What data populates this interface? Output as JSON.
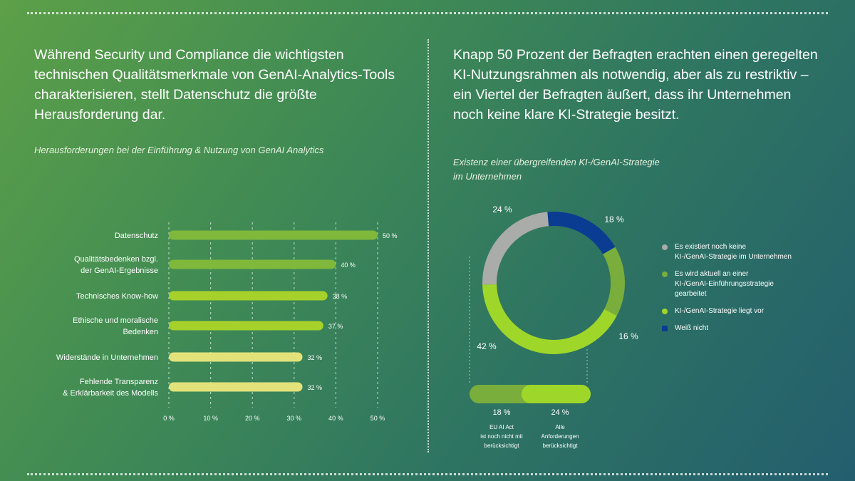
{
  "left": {
    "headline": "Während Security und Compliance die wichtigsten technischen Qualitätsmerkmale von GenAI-Analytics-Tools charakterisieren, stellt Datenschutz die größte Herausforderung dar.",
    "subtitle": "Herausforderungen bei der Einführung & Nutzung von GenAI Analytics"
  },
  "right": {
    "headline": "Knapp 50 Prozent der Befragten erachten einen geregelten KI-Nutzungsrahmen als notwendig, aber als zu restriktiv – ein Viertel der Befragten äußert, dass ihr Unternehmen noch keine klare KI-Strategie besitzt.",
    "subtitle_line1": "Existenz einer übergreifenden KI-/GenAI-Strategie",
    "subtitle_line2": "im Unternehmen"
  },
  "chart_data": [
    {
      "type": "bar",
      "orientation": "horizontal",
      "title": "Herausforderungen bei der Einführung & Nutzung von GenAI Analytics",
      "categories": [
        [
          "Datenschutz"
        ],
        [
          "Qualitätsbedenken bzgl.",
          "der GenAI-Ergebnisse"
        ],
        [
          "Technisches Know-how"
        ],
        [
          "Ethische und moralische",
          "Bedenken"
        ],
        [
          "Widerstände in Unternehmen"
        ],
        [
          "Fehlende Transparenz",
          "& Erklärbarkeit des Modells"
        ]
      ],
      "values": [
        50,
        40,
        38,
        37,
        32,
        32
      ],
      "value_labels": [
        "50 %",
        "40 %",
        "38 %",
        "37 %",
        "32 %",
        "32 %"
      ],
      "bar_colors": [
        "#7fb83a",
        "#7fb83a",
        "#a6d12a",
        "#a6d12a",
        "#e3e27a",
        "#e3e27a"
      ],
      "xlim": [
        0,
        50
      ],
      "xticks": [
        "0 %",
        "10 %",
        "20 %",
        "30 %",
        "40 %",
        "50 %"
      ],
      "grid": true
    },
    {
      "type": "pie",
      "variant": "donut",
      "title": "Existenz einer übergreifenden KI-/GenAI-Strategie im Unternehmen",
      "slices": [
        {
          "label": "Weiß nicht",
          "value": 18,
          "value_label": "18 %",
          "color": "#0a3d91"
        },
        {
          "label": "Es wird aktuell an einer KI-/GenAI-Einführungsstrategie gearbeitet",
          "value": 16,
          "value_label": "16 %",
          "color": "#79ad3c"
        },
        {
          "label": "KI-/GenAI-Strategie liegt vor",
          "value": 42,
          "value_label": "42 %",
          "color": "#9fd62a"
        },
        {
          "label": "Es existiert noch keine KI-/GenAI-Strategie im Unternehmen",
          "value": 24,
          "value_label": "24 %",
          "color": "#a9aca8"
        }
      ],
      "legend": [
        {
          "lines": [
            "Es existiert noch keine",
            "KI-/GenAI-Strategie im Unternehmen"
          ],
          "color": "#a9aca8"
        },
        {
          "lines": [
            "Es wird aktuell an einer",
            "KI-/GenAI-Einführungsstrategie",
            "gearbeitet"
          ],
          "color": "#79ad3c"
        },
        {
          "lines": [
            "KI-/GenAI-Strategie liegt vor"
          ],
          "color": "#9fd62a"
        },
        {
          "lines": [
            "Weiß nicht"
          ],
          "color": "#0a3d91"
        }
      ],
      "legend_position": "right",
      "breakdown": {
        "of": "42 %",
        "parts": [
          {
            "value": 18,
            "value_label": "18 %",
            "lines": [
              "EU AI Act",
              "ist noch nicht mit",
              "berücksichtigt"
            ],
            "color": "#79ad3c"
          },
          {
            "value": 24,
            "value_label": "24 %",
            "lines": [
              "Alle",
              "Anforderungen",
              "berücksichtigt"
            ],
            "color": "#9fd62a"
          }
        ]
      }
    }
  ]
}
